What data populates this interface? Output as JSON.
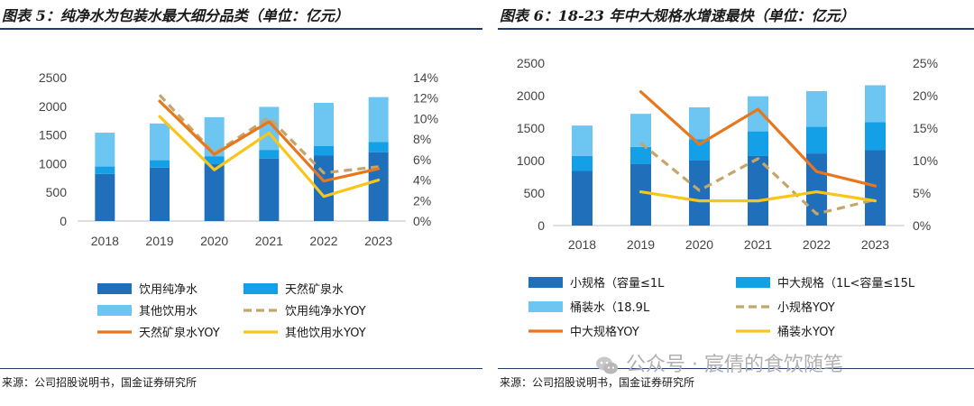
{
  "colors": {
    "rule": "#1f3a6e",
    "small": "#1f6fba",
    "mid": "#14a0e6",
    "bucket": "#6dc6f2",
    "dash": "#c4a56a",
    "orange": "#e8761c",
    "yellow": "#f8c51a"
  },
  "left": {
    "title": "图表 5：纯净水为包装水最大细分品类（单位：亿元）",
    "source": "来源：公司招股说明书，国金证券研究所"
  },
  "right": {
    "title": "图表 6：18-23 年中大规格水增速最快（单位：亿元）",
    "source": "来源：公司招股说明书，国金证券研究所"
  },
  "watermark": "公众号 · 宸倩的食饮随笔",
  "chart_data": [
    {
      "type": "bar",
      "stacked": true,
      "categories": [
        "2018",
        "2019",
        "2020",
        "2021",
        "2022",
        "2023"
      ],
      "ylim": [
        0,
        2500
      ],
      "y_ticks": [
        "0",
        "500",
        "1000",
        "1500",
        "2000",
        "2500"
      ],
      "y2lim": [
        0,
        0.14
      ],
      "y2_ticks": [
        "0%",
        "2%",
        "4%",
        "6%",
        "8%",
        "10%",
        "12%",
        "14%"
      ],
      "series": [
        {
          "name": "饮用纯净水",
          "kind": "bar",
          "values": [
            820,
            930,
            990,
            1090,
            1140,
            1200
          ],
          "color": "#1f6fba"
        },
        {
          "name": "天然矿泉水",
          "kind": "bar",
          "values": [
            130,
            130,
            140,
            150,
            170,
            180
          ],
          "color": "#14a0e6"
        },
        {
          "name": "其他饮用水",
          "kind": "bar",
          "values": [
            590,
            640,
            680,
            750,
            750,
            780
          ],
          "color": "#6dc6f2"
        },
        {
          "name": "饮用纯净水YOY",
          "kind": "line",
          "axis": "right",
          "dashed": true,
          "values": [
            null,
            0.123,
            0.066,
            0.101,
            0.047,
            0.053
          ],
          "color": "#c4a56a"
        },
        {
          "name": "天然矿泉水YOY",
          "kind": "line",
          "axis": "right",
          "values": [
            null,
            0.117,
            0.065,
            0.097,
            0.039,
            0.051
          ],
          "color": "#e8761c"
        },
        {
          "name": "其他饮用水YOY",
          "kind": "line",
          "axis": "right",
          "values": [
            null,
            0.102,
            0.05,
            0.086,
            0.024,
            0.04
          ],
          "color": "#f8c51a"
        }
      ],
      "legend": "bottom"
    },
    {
      "type": "bar",
      "stacked": true,
      "categories": [
        "2018",
        "2019",
        "2020",
        "2021",
        "2022",
        "2023"
      ],
      "ylim": [
        0,
        2500
      ],
      "y_ticks": [
        "0",
        "500",
        "1000",
        "1500",
        "2000",
        "2500"
      ],
      "y2lim": [
        0,
        0.25
      ],
      "y2_ticks": [
        "0%",
        "5%",
        "10%",
        "15%",
        "20%",
        "25%"
      ],
      "series": [
        {
          "name": "小规格（容量≤1L",
          "kind": "bar",
          "values": [
            840,
            950,
            1000,
            1070,
            1110,
            1160
          ],
          "color": "#1f6fba"
        },
        {
          "name": "中大规格（1L<容量≤15L",
          "kind": "bar",
          "values": [
            230,
            260,
            330,
            380,
            410,
            430
          ],
          "color": "#14a0e6"
        },
        {
          "name": "桶装水（18.9L",
          "kind": "bar",
          "values": [
            470,
            510,
            490,
            540,
            550,
            570
          ],
          "color": "#6dc6f2"
        },
        {
          "name": "小规格YOY",
          "kind": "line",
          "axis": "right",
          "dashed": true,
          "values": [
            null,
            0.127,
            0.054,
            0.103,
            0.018,
            0.04
          ],
          "color": "#c4a56a"
        },
        {
          "name": "中大规格YOY",
          "kind": "line",
          "axis": "right",
          "values": [
            null,
            0.206,
            0.125,
            0.179,
            0.083,
            0.061
          ],
          "color": "#e8761c"
        },
        {
          "name": "桶装水YOY",
          "kind": "line",
          "axis": "right",
          "values": [
            null,
            0.052,
            0.038,
            0.038,
            0.052,
            0.038
          ],
          "color": "#f8c51a"
        }
      ],
      "legend": "bottom"
    }
  ]
}
